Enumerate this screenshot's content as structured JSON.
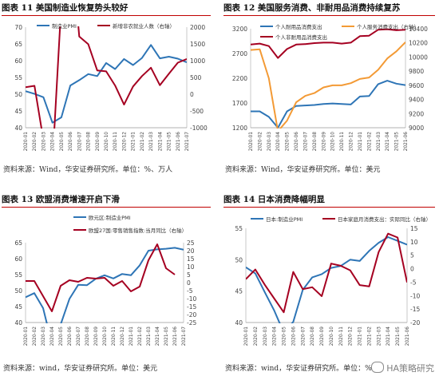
{
  "panels": [
    {
      "id": "p11",
      "title": "图表 11  美国制造业恢复势头较好",
      "source": "资料来源：Wind，华安证券研究所。单位：%、万人"
    },
    {
      "id": "p12",
      "title": "图表 12  美国服务消费、非耐用品消费持续复苏",
      "source": "资料来源：Wind，华安证券研究所。单位：美元"
    },
    {
      "id": "p13",
      "title": "图表 13  欧盟消费增速开启下滑",
      "source": "资料来源：wind，华安证券研究所。单位：美元"
    },
    {
      "id": "p14",
      "title": "图表 14  日本消费降幅明显",
      "source": "资料来源：wind，华安证券研究所。单位：%"
    }
  ],
  "watermark": "HA策略研究",
  "chart_data": [
    {
      "type": "line",
      "xlabels": [
        "2020-01",
        "2020-02",
        "2020-03",
        "2020-04",
        "2020-05",
        "2020-06",
        "2020-07",
        "2020-08",
        "2020-09",
        "2020-10",
        "2020-11",
        "2020-12",
        "2021-01",
        "2021-02",
        "2021-03",
        "2021-04",
        "2021-05",
        "2021-06",
        "2021-07"
      ],
      "left_axis": {
        "ylim": [
          40,
          70
        ],
        "ticks": [
          40,
          45,
          50,
          55,
          60,
          65,
          70
        ]
      },
      "right_axis": {
        "ylim": [
          -1000,
          2000
        ],
        "ticks": [
          -1000,
          -500,
          0,
          500,
          1000,
          1500,
          2000
        ]
      },
      "series": [
        {
          "name": "制造业PMI",
          "axis": "left",
          "color": "#2e75b6",
          "values": [
            50.9,
            50.1,
            49.1,
            41.5,
            43.1,
            52.6,
            54.2,
            56.0,
            55.4,
            59.3,
            57.5,
            60.5,
            58.7,
            60.8,
            64.7,
            60.7,
            61.2,
            60.6,
            59.5
          ]
        },
        {
          "name": "新增非农就业人数（右轴）",
          "axis": "right",
          "color": "#a50021",
          "values": [
            210,
            250,
            -1370,
            -2070,
            2730,
            4780,
            1720,
            1490,
            710,
            680,
            260,
            -310,
            230,
            540,
            790,
            270,
            610,
            940,
            1050
          ]
        }
      ]
    },
    {
      "type": "line",
      "xlabels": [
        "2020-01",
        "2020-02",
        "2020-03",
        "2020-04",
        "2020-05",
        "2020-06",
        "2020-07",
        "2020-08",
        "2020-09",
        "2020-10",
        "2020-11",
        "2020-12",
        "2021-01",
        "2021-02",
        "2021-03",
        "2021-04",
        "2021-05",
        "2021-06"
      ],
      "left_axis": {
        "ylim": [
          1200,
          3200
        ],
        "ticks": [
          1200,
          1700,
          2200,
          2700,
          3200
        ]
      },
      "right_axis": {
        "ylim": [
          9000,
          10400
        ],
        "ticks": [
          9000,
          9200,
          9400,
          9600,
          9800,
          10000,
          10200,
          10400
        ]
      },
      "series": [
        {
          "name": "个人耐用品消费支出",
          "axis": "left",
          "color": "#2e75b6",
          "values": [
            1530,
            1530,
            1420,
            1200,
            1530,
            1640,
            1650,
            1660,
            1680,
            1690,
            1680,
            1670,
            1830,
            1840,
            2080,
            2150,
            2090,
            2060
          ]
        },
        {
          "name": "个人非耐用品消费支出",
          "axis": "left",
          "color": "#a50021",
          "values": [
            2880,
            2900,
            2850,
            2610,
            2790,
            2880,
            2890,
            2910,
            2920,
            2920,
            2900,
            2920,
            3050,
            3060,
            3180,
            3190,
            3170,
            3180
          ]
        },
        {
          "name": "个人服务消费支出（右轴）",
          "axis": "right",
          "color": "#f39a35",
          "values": [
            10100,
            10110,
            9700,
            8950,
            9100,
            9360,
            9450,
            9490,
            9570,
            9600,
            9600,
            9630,
            9690,
            9710,
            9820,
            9980,
            10080,
            10210
          ]
        }
      ]
    },
    {
      "type": "line",
      "xlabels": [
        "2020-01",
        "2020-02",
        "2020-03",
        "2020-04",
        "2020-05",
        "2020-06",
        "2020-07",
        "2020-08",
        "2020-09",
        "2020-10",
        "2020-11",
        "2020-12",
        "2021-01",
        "2021-02",
        "2021-03",
        "2021-04",
        "2021-05",
        "2021-06",
        "2021-07"
      ],
      "left_axis": {
        "ylim": [
          40,
          65
        ],
        "ticks": [
          40,
          45,
          50,
          55,
          60,
          65
        ]
      },
      "right_axis": {
        "ylim": [
          -25,
          25
        ],
        "ticks": [
          -25,
          -20,
          -15,
          -10,
          -5,
          0,
          5,
          10,
          15,
          20,
          25
        ]
      },
      "series": [
        {
          "name": "欧元区:制造业PMI",
          "axis": "left",
          "color": "#2e75b6",
          "values": [
            47.9,
            49.2,
            44.5,
            33.4,
            39.4,
            47.4,
            51.8,
            51.7,
            53.7,
            54.8,
            53.8,
            55.2,
            54.8,
            57.9,
            62.5,
            62.9,
            63.1,
            63.4,
            62.8
          ]
        },
        {
          "name": "欧盟27国:零售销售指数:当月同比（右轴）",
          "axis": "right",
          "color": "#a50021",
          "values": [
            1.0,
            1.0,
            -8.5,
            -18.0,
            -2.0,
            1.5,
            0.5,
            3.0,
            2.5,
            3.0,
            -2.0,
            1.0,
            -5.5,
            -2.5,
            14.0,
            24.0,
            9.0,
            5.0
          ]
        }
      ]
    },
    {
      "type": "line",
      "xlabels": [
        "2020-01",
        "2020-02",
        "2020-03",
        "2020-04",
        "2020-05",
        "2020-06",
        "2020-07",
        "2020-08",
        "2020-09",
        "2020-10",
        "2020-11",
        "2020-12",
        "2021-01",
        "2021-02",
        "2021-03",
        "2021-04",
        "2021-05",
        "2021-06"
      ],
      "left_axis": {
        "ylim": [
          40,
          55
        ],
        "ticks": [
          40,
          45,
          50,
          55
        ]
      },
      "right_axis": {
        "ylim": [
          -20,
          15
        ],
        "ticks": [
          -20,
          -15,
          -10,
          -5,
          0,
          5,
          10,
          15
        ]
      },
      "series": [
        {
          "name": "日本:制造业PMI",
          "axis": "left",
          "color": "#2e75b6",
          "values": [
            48.8,
            47.8,
            44.8,
            41.9,
            38.4,
            40.1,
            45.2,
            47.2,
            47.7,
            48.7,
            49.0,
            50.0,
            49.8,
            51.4,
            52.7,
            53.6,
            53.0,
            52.4
          ]
        },
        {
          "name": "日本家庭月消费支出：实际同比（右轴）",
          "axis": "right",
          "color": "#a50021",
          "values": [
            -3.9,
            -0.3,
            -6.0,
            -11.1,
            -16.2,
            -1.2,
            -7.6,
            -6.9,
            -10.2,
            1.9,
            1.1,
            -0.6,
            -6.1,
            -6.6,
            6.2,
            13.0,
            11.6,
            -5.1
          ]
        }
      ]
    }
  ]
}
